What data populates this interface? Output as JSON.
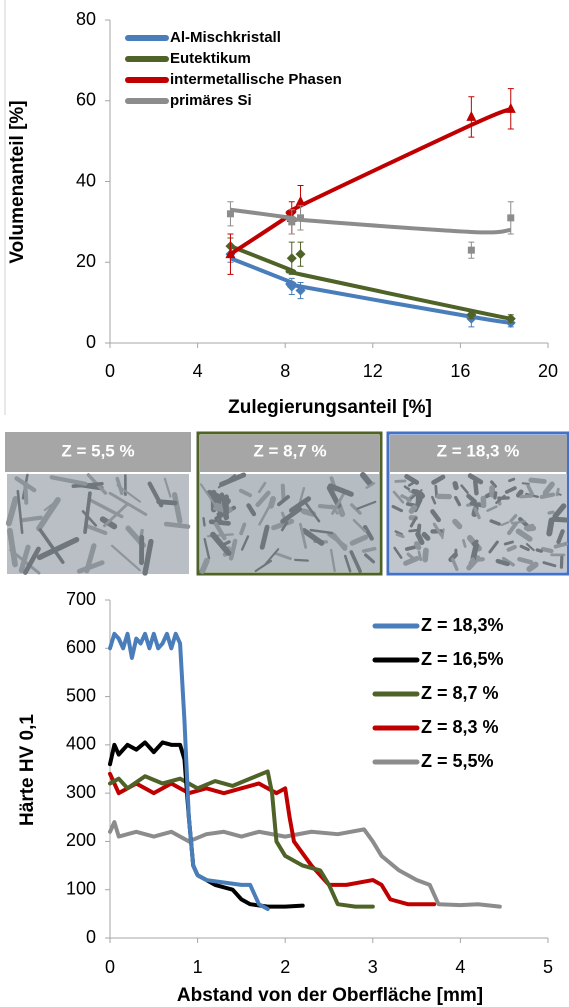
{
  "chart_data": [
    {
      "type": "scatter",
      "x_label": "Zulegierungsanteil [%]",
      "y_label": "Volumenanteil [%]",
      "xlim": [
        0,
        20
      ],
      "xticks": [
        0,
        4,
        8,
        12,
        16,
        20
      ],
      "ylim": [
        0,
        80
      ],
      "yticks": [
        0,
        20,
        40,
        60,
        80
      ],
      "x": [
        5.5,
        8.3,
        8.7,
        16.5,
        18.3
      ],
      "series": [
        {
          "name": "Al-Mischkristall",
          "color": "#4a7ebb",
          "marker": "diamond",
          "values": [
            22,
            14,
            13,
            6,
            5
          ],
          "errors": [
            2,
            2,
            2,
            2,
            1
          ],
          "trend": [
            21,
            15,
            14,
            6.5,
            5
          ]
        },
        {
          "name": "Eutektikum",
          "color": "#4f6228",
          "marker": "diamond",
          "values": [
            24,
            21,
            22,
            7,
            6
          ],
          "errors": [
            2,
            4,
            3,
            1,
            1
          ],
          "trend": [
            24,
            18,
            17,
            8,
            6
          ]
        },
        {
          "name": "intermetallische Phasen",
          "color": "#c00000",
          "marker": "triangle",
          "values": [
            22,
            31,
            35,
            56,
            58
          ],
          "errors": [
            5,
            4,
            4,
            5,
            5
          ],
          "trend": [
            22,
            32,
            34,
            54,
            58
          ]
        },
        {
          "name": "primäres Si",
          "color": "#8c8c8c",
          "marker": "square",
          "values": [
            32,
            30,
            31,
            23,
            31
          ],
          "errors": [
            3,
            3,
            3,
            2,
            4
          ],
          "trend": [
            33,
            31,
            30.5,
            27.5,
            28
          ]
        }
      ]
    },
    {
      "type": "line",
      "x_label": "Abstand von der Oberfläche [mm]",
      "y_label": "Härte HV 0,1",
      "xlim": [
        0,
        5
      ],
      "xticks": [
        0,
        1,
        2,
        3,
        4,
        5
      ],
      "ylim": [
        0,
        700
      ],
      "yticks": [
        0,
        100,
        200,
        300,
        400,
        500,
        600,
        700
      ],
      "series": [
        {
          "name": "Z = 18,3%",
          "color": "#4a7ebb",
          "x": [
            0,
            0.05,
            0.1,
            0.15,
            0.2,
            0.25,
            0.3,
            0.35,
            0.4,
            0.45,
            0.5,
            0.55,
            0.6,
            0.65,
            0.7,
            0.75,
            0.8,
            0.85,
            0.9,
            0.95,
            1.0,
            1.1,
            1.3,
            1.5,
            1.6,
            1.7,
            1.8
          ],
          "values": [
            600,
            630,
            620,
            600,
            630,
            580,
            620,
            610,
            630,
            600,
            630,
            600,
            610,
            630,
            600,
            630,
            610,
            450,
            250,
            150,
            130,
            120,
            115,
            110,
            110,
            70,
            60
          ]
        },
        {
          "name": "Z = 16,5%",
          "color": "#000000",
          "x": [
            0,
            0.05,
            0.1,
            0.2,
            0.3,
            0.4,
            0.5,
            0.6,
            0.7,
            0.8,
            0.85,
            0.9,
            0.95,
            1.0,
            1.1,
            1.2,
            1.4,
            1.5,
            1.6,
            1.8,
            2.0,
            2.2
          ],
          "values": [
            360,
            400,
            380,
            400,
            390,
            405,
            385,
            405,
            400,
            400,
            370,
            250,
            150,
            130,
            120,
            110,
            100,
            80,
            70,
            65,
            65,
            67
          ]
        },
        {
          "name": "Z = 8,7 %",
          "color": "#4f6228",
          "x": [
            0,
            0.1,
            0.2,
            0.4,
            0.6,
            0.8,
            1.0,
            1.2,
            1.4,
            1.6,
            1.8,
            1.85,
            1.9,
            2.0,
            2.2,
            2.4,
            2.5,
            2.6,
            2.8,
            3.0
          ],
          "values": [
            320,
            330,
            310,
            335,
            320,
            330,
            310,
            325,
            315,
            330,
            345,
            300,
            200,
            170,
            150,
            140,
            110,
            70,
            65,
            65
          ]
        },
        {
          "name": "Z = 8,3 %",
          "color": "#c00000",
          "x": [
            0,
            0.1,
            0.3,
            0.5,
            0.7,
            0.9,
            1.1,
            1.3,
            1.5,
            1.7,
            1.9,
            2.0,
            2.05,
            2.1,
            2.3,
            2.5,
            2.7,
            3.0,
            3.1,
            3.2,
            3.4,
            3.7
          ],
          "values": [
            340,
            300,
            320,
            300,
            320,
            300,
            310,
            300,
            310,
            320,
            300,
            310,
            250,
            200,
            150,
            110,
            110,
            120,
            110,
            80,
            70,
            70
          ]
        },
        {
          "name": "Z = 5,5%",
          "color": "#8c8c8c",
          "x": [
            0,
            0.05,
            0.1,
            0.3,
            0.5,
            0.7,
            0.9,
            1.1,
            1.3,
            1.5,
            1.7,
            2.0,
            2.3,
            2.6,
            2.9,
            3.0,
            3.1,
            3.3,
            3.5,
            3.65,
            3.75,
            4.0,
            4.2,
            4.45
          ],
          "values": [
            220,
            240,
            210,
            220,
            210,
            220,
            200,
            215,
            220,
            210,
            220,
            210,
            220,
            215,
            225,
            200,
            170,
            140,
            120,
            110,
            70,
            68,
            70,
            65
          ]
        }
      ]
    }
  ],
  "micrographs": {
    "panels": [
      {
        "label": "Z = 5,5 %"
      },
      {
        "label": "Z = 8,7 %"
      },
      {
        "label": "Z = 18,3 %"
      }
    ]
  }
}
